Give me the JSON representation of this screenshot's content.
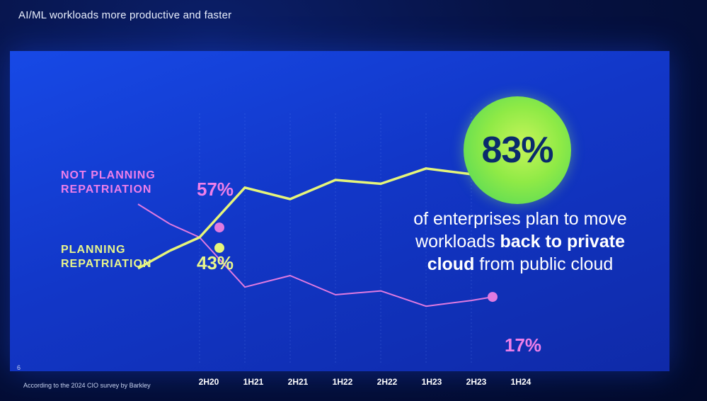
{
  "header": {
    "title": "AI/ML workloads more productive  and faster"
  },
  "slide": {
    "number": "6",
    "footnote": "According to the 2024 CIO survey by Barkley"
  },
  "legend": {
    "not_planning": "NOT PLANNING\nREPATRIATION",
    "planning": "PLANNING\nREPATRIATION"
  },
  "labels": {
    "start_not_planning": "57%",
    "start_planning": "43%",
    "end_not_planning": "17%"
  },
  "callout": {
    "big_number": "83%",
    "text_1": "of enterprises plan to move workloads ",
    "text_bold_1": "back to private cloud",
    "text_2": " from public cloud"
  },
  "colors": {
    "planning": "#e6f57a",
    "not_planning": "#e07ae0",
    "background": "#1540d6"
  },
  "chart_data": {
    "type": "line",
    "categories": [
      "2H20",
      "1H21",
      "2H21",
      "1H22",
      "2H22",
      "1H23",
      "2H23",
      "1H24"
    ],
    "series": [
      {
        "name": "NOT PLANNING REPATRIATION",
        "values": [
          57,
          50,
          24,
          30,
          20,
          22,
          14,
          17
        ]
      },
      {
        "name": "PLANNING REPATRIATION",
        "values": [
          43,
          50,
          76,
          70,
          80,
          78,
          86,
          83
        ]
      }
    ],
    "ylim": [
      0,
      100
    ],
    "grid": true
  }
}
